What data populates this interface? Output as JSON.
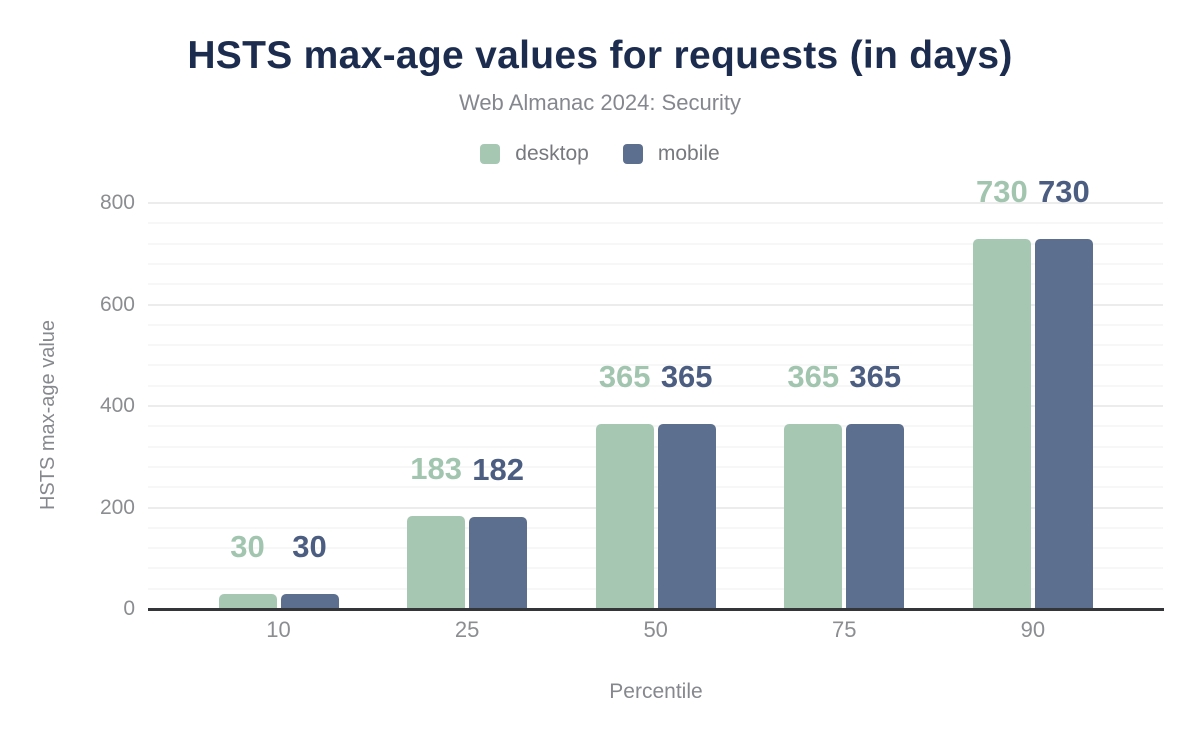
{
  "header": {
    "title": "HSTS max-age values for requests (in days)",
    "subtitle": "Web Almanac 2024: Security"
  },
  "colors": {
    "title": "#1c2c4f",
    "subtitle": "#85878f",
    "desktop": "#a6c8b3",
    "mobile": "#5d6f8f",
    "desktop_value_label": "#a1c5ae",
    "mobile_value_label": "#4b5d80",
    "axis_tick_label": "#8b8d90",
    "axis_title": "#86888d",
    "axis_line": "#333538",
    "grid_major": "#ececec",
    "grid_minor": "#f7f7f7"
  },
  "chart_data": {
    "type": "bar",
    "title": "HSTS max-age values for requests (in days)",
    "subtitle": "Web Almanac 2024: Security",
    "categories": [
      "10",
      "25",
      "50",
      "75",
      "90"
    ],
    "series": [
      {
        "name": "desktop",
        "color": "#a6c8b3",
        "label_color": "#a1c5ae",
        "values": [
          30,
          183,
          365,
          365,
          730
        ]
      },
      {
        "name": "mobile",
        "color": "#5d6f8f",
        "label_color": "#4b5d80",
        "values": [
          30,
          182,
          365,
          365,
          730
        ]
      }
    ],
    "xlabel": "Percentile",
    "ylabel": "HSTS max-age value",
    "ylim": [
      0,
      800
    ],
    "yticks": [
      0,
      200,
      400,
      600,
      800
    ],
    "minor_tick_interval": 40,
    "grid": true,
    "legend_position": "top",
    "data_labels": true
  }
}
